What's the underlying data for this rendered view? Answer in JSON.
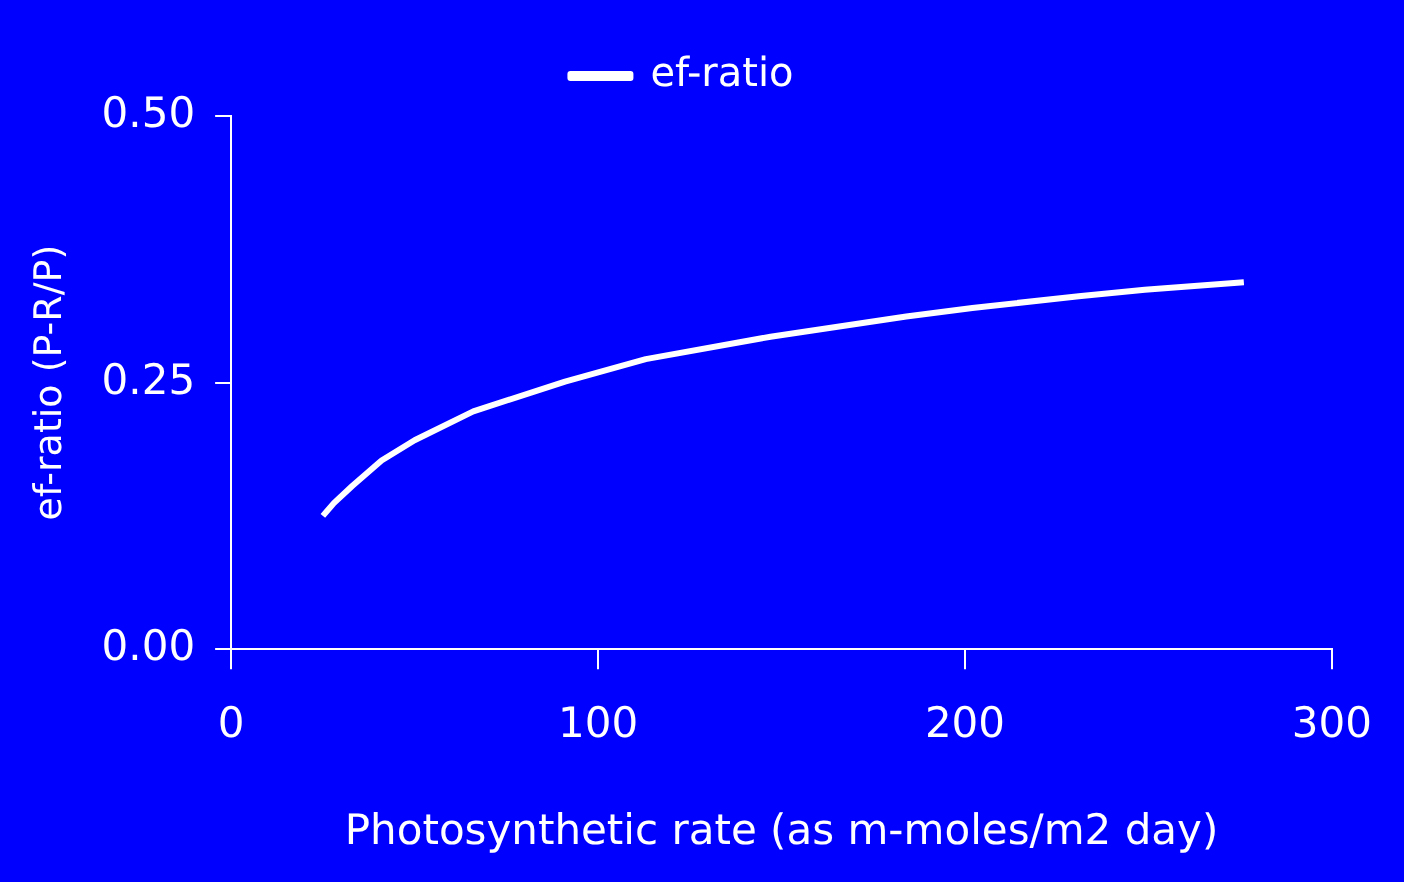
{
  "chart_data": {
    "type": "line",
    "xlabel": "Photosynthetic rate (as m-moles/m2 day)",
    "ylabel": "ef-ratio (P-R/P)",
    "x": [
      25,
      28,
      33,
      41,
      50,
      66,
      91,
      113,
      147,
      184,
      202,
      231,
      249,
      276
    ],
    "series": [
      {
        "name": "ef-ratio",
        "color": "#ffffff",
        "values": [
          0.125,
          0.137,
          0.153,
          0.177,
          0.196,
          0.223,
          0.251,
          0.272,
          0.293,
          0.312,
          0.32,
          0.331,
          0.337,
          0.344
        ]
      }
    ],
    "xlim": [
      0,
      300
    ],
    "xticks": [
      0,
      100,
      200,
      300
    ],
    "ylim": [
      0,
      0.5
    ],
    "yticks": [
      {
        "value": 0,
        "label": "0.00"
      },
      {
        "value": 0.25,
        "label": "0.25"
      },
      {
        "value": 0.5,
        "label": "0.50"
      }
    ],
    "grid": false,
    "legend": "top",
    "marker": "none",
    "line_style": "solid"
  }
}
